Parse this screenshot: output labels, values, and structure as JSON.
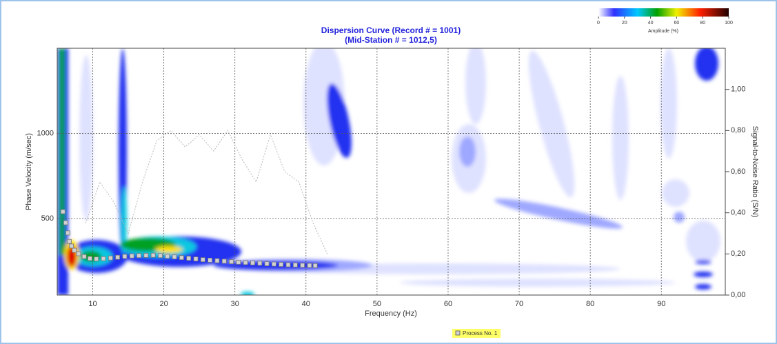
{
  "chart_data": {
    "type": "scatter",
    "title": "Dispersion Curve (Record # = 1001)",
    "subtitle": "(Mid-Station # = 1012,5)",
    "x_label": "Frequency (Hz)",
    "y_label": "Phase Velocity (m/sec)",
    "y2_label": "Signal-to-Noise Ratio (S/N)",
    "xlim": [
      5,
      99
    ],
    "xticks": [
      10,
      20,
      30,
      40,
      50,
      60,
      70,
      80,
      90
    ],
    "ylim": [
      50,
      1500
    ],
    "yticks": [
      500,
      1000
    ],
    "y2lim": [
      0,
      1.2
    ],
    "y2ticks": [
      {
        "value": 0,
        "label": "0,00"
      },
      {
        "value": 0.2,
        "label": "0,20"
      },
      {
        "value": 0.4,
        "label": "0,40"
      },
      {
        "value": 0.6,
        "label": "0,60"
      },
      {
        "value": 0.8,
        "label": "0,80"
      },
      {
        "value": 1,
        "label": "1,00"
      }
    ],
    "grid": true,
    "legend": "bottom",
    "series": [
      {
        "name": "Process No. 1",
        "color": "#d0d0d0",
        "x": [
          5.8,
          6.2,
          6.5,
          6.7,
          7.0,
          7.4,
          8.0,
          8.8,
          9.6,
          10.5,
          11.5,
          12.5,
          13.5,
          14.5,
          15.5,
          16.5,
          17.5,
          18.5,
          19.5,
          20.5,
          21.5,
          22.5,
          23.5,
          24.5,
          25.5,
          26.5,
          27.5,
          28.5,
          29.5,
          30.5,
          31.5,
          32.5,
          33.5,
          34.5,
          35.5,
          36.5,
          37.5,
          38.5,
          39.5,
          40.5,
          41.3
        ],
        "values": [
          540,
          475,
          415,
          365,
          338,
          313,
          293,
          276,
          265,
          262,
          264,
          268,
          272,
          277,
          280,
          282,
          283,
          284,
          282,
          278,
          274,
          270,
          266,
          262,
          258,
          255,
          252,
          249,
          246,
          243,
          241,
          239,
          237,
          234,
          232,
          230,
          228,
          227,
          225,
          224,
          223
        ]
      },
      {
        "type": "line",
        "axis": "y2",
        "color": "#b8b8b8",
        "x": [
          9,
          11,
          13,
          15,
          17,
          19,
          21,
          23,
          25,
          27,
          29,
          31,
          33,
          35,
          37,
          39,
          41,
          43
        ],
        "values": [
          0.35,
          0.55,
          0.45,
          0.3,
          0.55,
          0.75,
          0.8,
          0.72,
          0.78,
          0.7,
          0.8,
          0.66,
          0.55,
          0.78,
          0.6,
          0.55,
          0.35,
          0.2
        ]
      }
    ],
    "colorbar": {
      "label": "Amplitude (%)",
      "lim": [
        0,
        100
      ],
      "ticks": [
        0,
        20,
        40,
        60,
        80,
        100
      ]
    }
  }
}
